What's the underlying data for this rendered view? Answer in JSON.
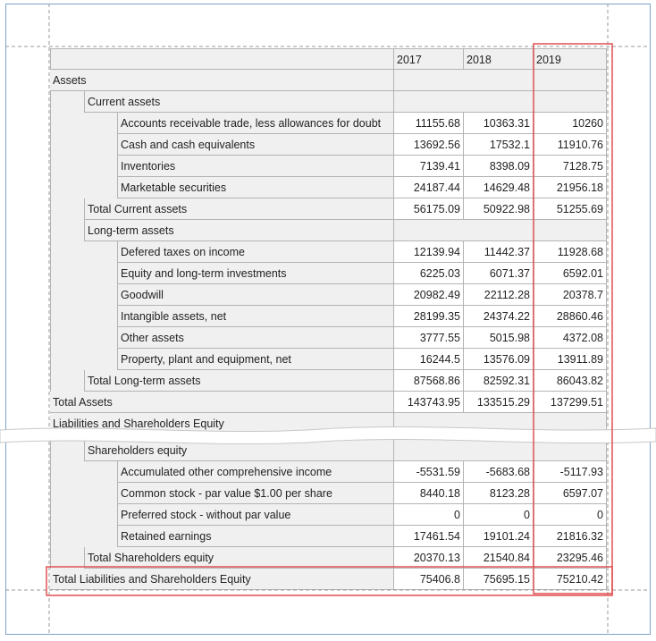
{
  "table": {
    "years": [
      "2017",
      "2018",
      "2019"
    ],
    "top_rows": [
      {
        "label": "Assets",
        "level": 0
      },
      {
        "label": "Current assets",
        "level": 1
      },
      {
        "label": "Accounts receivable trade, less allowances for doubt",
        "level": 2,
        "values": [
          11155.68,
          10363.31,
          10260
        ]
      },
      {
        "label": "Cash and cash equivalents",
        "level": 2,
        "values": [
          13692.56,
          17532.1,
          11910.76
        ]
      },
      {
        "label": "Inventories",
        "level": 2,
        "values": [
          7139.41,
          8398.09,
          7128.75
        ]
      },
      {
        "label": "Marketable securities",
        "level": 2,
        "values": [
          24187.44,
          14629.48,
          21956.18
        ]
      },
      {
        "label": "Total Current assets",
        "level": 1,
        "values": [
          56175.09,
          50922.98,
          51255.69
        ]
      },
      {
        "label": "Long-term assets",
        "level": 1
      },
      {
        "label": "Defered taxes on income",
        "level": 2,
        "values": [
          12139.94,
          11442.37,
          11928.68
        ]
      },
      {
        "label": "Equity and long-term investments",
        "level": 2,
        "values": [
          6225.03,
          6071.37,
          6592.01
        ]
      },
      {
        "label": "Goodwill",
        "level": 2,
        "values": [
          20982.49,
          22112.28,
          20378.7
        ]
      },
      {
        "label": "Intangible assets, net",
        "level": 2,
        "values": [
          28199.35,
          24374.22,
          28860.46
        ]
      },
      {
        "label": "Other assets",
        "level": 2,
        "values": [
          3777.55,
          5015.98,
          4372.08
        ]
      },
      {
        "label": "Property, plant and equipment, net",
        "level": 2,
        "values": [
          16244.5,
          13576.09,
          13911.89
        ]
      },
      {
        "label": "Total Long-term assets",
        "level": 1,
        "values": [
          87568.86,
          82592.31,
          86043.82
        ]
      },
      {
        "label": "Total Assets",
        "level": 0,
        "values": [
          143743.95,
          133515.29,
          137299.51
        ]
      },
      {
        "label": "Liabilities and Shareholders Equity",
        "level": 0
      }
    ],
    "bottom_rows": [
      {
        "label": "Shareholders equity",
        "level": 1
      },
      {
        "label": "Accumulated other comprehensive income",
        "level": 2,
        "values": [
          -5531.59,
          -5683.68,
          -5117.93
        ]
      },
      {
        "label": "Common stock - par value $1.00 per share",
        "level": 2,
        "values": [
          8440.18,
          8123.28,
          6597.07
        ]
      },
      {
        "label": "Preferred stock - without par value",
        "level": 2,
        "values": [
          0,
          0,
          0
        ]
      },
      {
        "label": "Retained earnings",
        "level": 2,
        "values": [
          17461.54,
          19101.24,
          21816.32
        ]
      },
      {
        "label": "Total Shareholders equity",
        "level": 1,
        "values": [
          20370.13,
          21540.84,
          23295.46
        ]
      },
      {
        "label": "Total Liabilities and Shareholders Equity",
        "level": 0,
        "values": [
          75406.8,
          75695.15,
          75210.42
        ]
      }
    ]
  }
}
